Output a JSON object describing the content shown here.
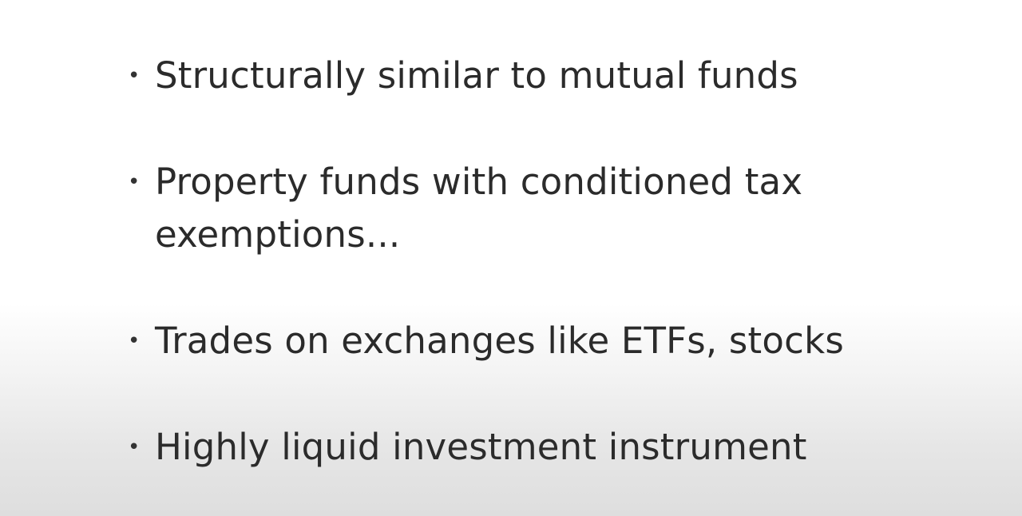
{
  "slide": {
    "bullets": [
      {
        "text": "Structurally similar to mutual funds"
      },
      {
        "text": "Property funds with conditioned tax exemptions..."
      },
      {
        "text": "Trades on exchanges like ETFs, stocks"
      },
      {
        "text": "Highly liquid investment instrument"
      }
    ],
    "bullet_glyph": "•"
  }
}
